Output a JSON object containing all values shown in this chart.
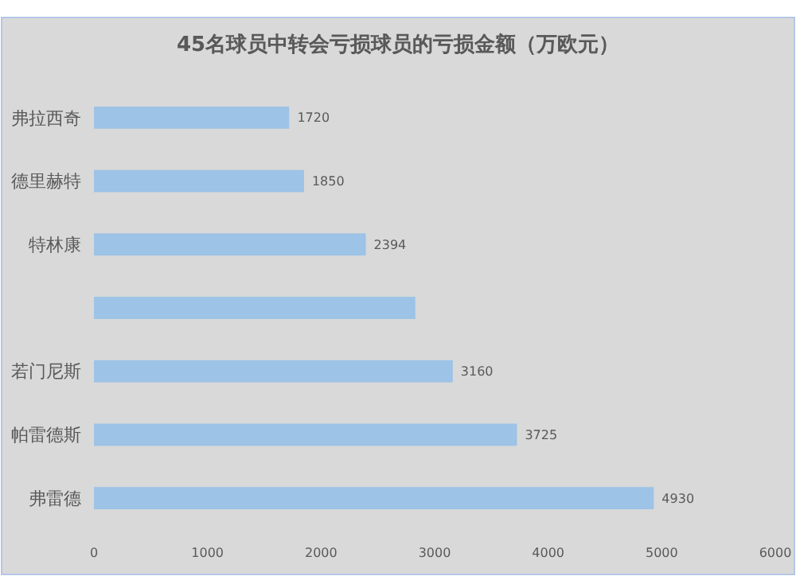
{
  "chart_data": {
    "type": "bar",
    "orientation": "horizontal",
    "title": "45名球员中转会亏损球员的亏损金额（万欧元）",
    "categories": [
      "弗拉西奇",
      "德里赫特",
      "特林康",
      null,
      "若门尼斯",
      "帕雷德斯",
      "弗雷德"
    ],
    "values": [
      1720,
      1850,
      2394,
      2830,
      3160,
      3725,
      4930
    ],
    "value_labels": [
      "1720",
      "1850",
      "2394",
      null,
      "3160",
      "3725",
      "4930"
    ],
    "color": "#9dc3e6",
    "xlim": [
      0,
      6000
    ],
    "xticks": [
      0,
      1000,
      2000,
      3000,
      4000,
      5000,
      6000
    ]
  }
}
